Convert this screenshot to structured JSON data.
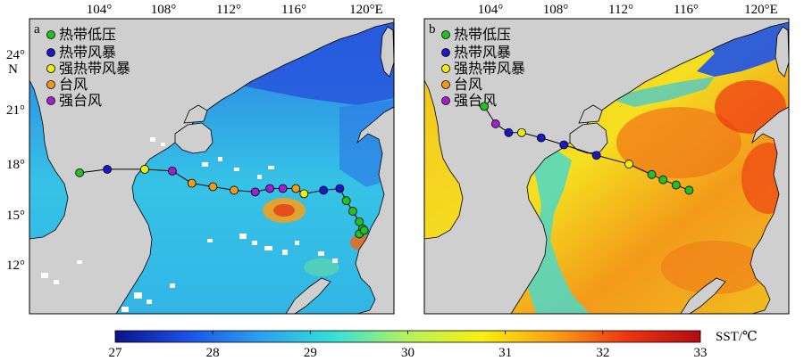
{
  "panels": [
    {
      "letter": "a",
      "x_ticks": [
        "104°",
        "108°",
        "112°",
        "116°",
        "120°E"
      ],
      "y_ticks": [
        "24°",
        "21°",
        "18°",
        "15°",
        "12°"
      ],
      "y_unit": "N",
      "legend": [
        {
          "label": "热带低压",
          "color": "#22c022"
        },
        {
          "label": "热带风暴",
          "color": "#1818c8"
        },
        {
          "label": "强热带风暴",
          "color": "#f0ee10"
        },
        {
          "label": "台风",
          "color": "#f39a1a"
        },
        {
          "label": "强台风",
          "color": "#a020d0"
        }
      ],
      "track": [
        {
          "lon": 102.8,
          "lat": 17.6,
          "category": "热带低压"
        },
        {
          "lon": 104.5,
          "lat": 17.8,
          "category": "热带风暴"
        },
        {
          "lon": 106.8,
          "lat": 17.8,
          "category": "强热带风暴"
        },
        {
          "lon": 108.5,
          "lat": 17.7,
          "category": "强台风"
        },
        {
          "lon": 109.7,
          "lat": 17.0,
          "category": "台风"
        },
        {
          "lon": 111.0,
          "lat": 16.8,
          "category": "台风"
        },
        {
          "lon": 112.3,
          "lat": 16.6,
          "category": "台风"
        },
        {
          "lon": 113.6,
          "lat": 16.5,
          "category": "强台风"
        },
        {
          "lon": 114.5,
          "lat": 16.7,
          "category": "强台风"
        },
        {
          "lon": 115.3,
          "lat": 16.7,
          "category": "强台风"
        },
        {
          "lon": 116.1,
          "lat": 16.7,
          "category": "台风"
        },
        {
          "lon": 116.6,
          "lat": 16.4,
          "category": "强热带风暴"
        },
        {
          "lon": 117.8,
          "lat": 16.6,
          "category": "热带风暴"
        },
        {
          "lon": 118.8,
          "lat": 16.7,
          "category": "热带风暴"
        },
        {
          "lon": 119.2,
          "lat": 16.0,
          "category": "热带低压"
        },
        {
          "lon": 119.6,
          "lat": 15.4,
          "category": "热带低压"
        },
        {
          "lon": 120.0,
          "lat": 14.8,
          "category": "热带低压"
        },
        {
          "lon": 120.2,
          "lat": 14.4,
          "category": "热带低压"
        },
        {
          "lon": 120.0,
          "lat": 14.1,
          "category": "热带低压"
        },
        {
          "lon": 120.3,
          "lat": 14.3,
          "category": "热带低压"
        }
      ]
    },
    {
      "letter": "b",
      "x_ticks": [
        "104°",
        "108°",
        "112°",
        "116°",
        "120°E"
      ],
      "legend": [
        {
          "label": "热带低压",
          "color": "#22c022"
        },
        {
          "label": "热带风暴",
          "color": "#1818c8"
        },
        {
          "label": "强热带风暴",
          "color": "#f0ee10"
        },
        {
          "label": "台风",
          "color": "#f39a1a"
        },
        {
          "label": "强台风",
          "color": "#a020d0"
        }
      ],
      "track": [
        {
          "lon": 103.4,
          "lat": 21.4,
          "category": "热带低压"
        },
        {
          "lon": 104.1,
          "lat": 20.4,
          "category": "强台风"
        },
        {
          "lon": 104.9,
          "lat": 19.9,
          "category": "热带风暴"
        },
        {
          "lon": 105.7,
          "lat": 19.9,
          "category": "强热带风暴"
        },
        {
          "lon": 106.9,
          "lat": 19.6,
          "category": "热带风暴"
        },
        {
          "lon": 108.3,
          "lat": 19.2,
          "category": "热带风暴"
        },
        {
          "lon": 110.3,
          "lat": 18.6,
          "category": "热带风暴"
        },
        {
          "lon": 112.3,
          "lat": 18.1,
          "category": "强热带风暴"
        },
        {
          "lon": 113.7,
          "lat": 17.5,
          "category": "热带低压"
        },
        {
          "lon": 114.4,
          "lat": 17.2,
          "category": "热带低压"
        },
        {
          "lon": 115.2,
          "lat": 16.9,
          "category": "热带低压"
        },
        {
          "lon": 116.0,
          "lat": 16.6,
          "category": "热带低压"
        }
      ]
    }
  ],
  "colorbar": {
    "ticks": [
      "27",
      "28",
      "29",
      "30",
      "31",
      "32",
      "33"
    ],
    "min": 27,
    "max": 33,
    "label": "SST/℃",
    "stops": [
      "#0a128c",
      "#1c52e8",
      "#2aa2ee",
      "#36e0d8",
      "#b6f25c",
      "#f8f010",
      "#fba014",
      "#ee3412",
      "#b20c10"
    ]
  }
}
